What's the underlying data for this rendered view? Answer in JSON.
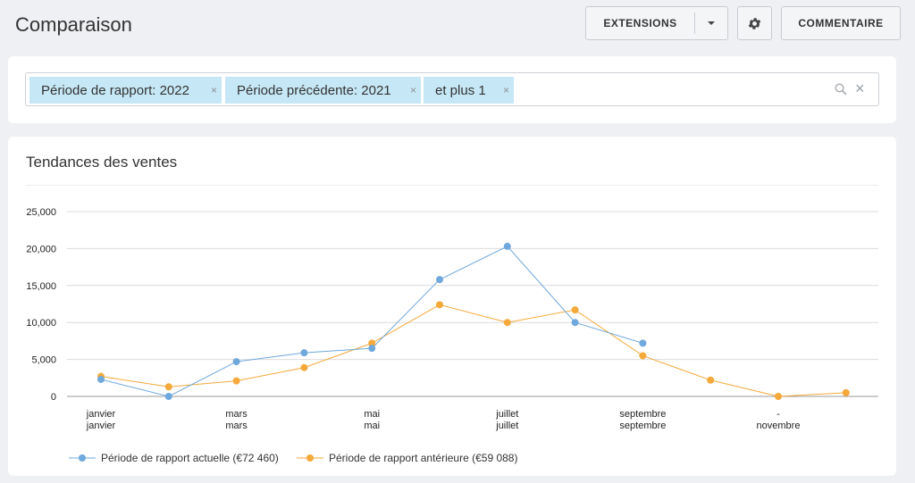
{
  "header": {
    "title": "Comparaison",
    "extensions_label": "EXTENSIONS",
    "comment_label": "COMMENTAIRE"
  },
  "filters": {
    "chips": [
      "Période de rapport: 2022",
      "Période précédente: 2021",
      "et plus 1"
    ],
    "remove_glyph": "×",
    "clear_glyph": "×"
  },
  "colors": {
    "current": "#6fa8dc",
    "previous": "#f4a93a"
  },
  "chart_data": {
    "type": "line",
    "title": "Tendances des ventes",
    "ylim": [
      0,
      25000
    ],
    "yticks": [
      "0",
      "5,000",
      "10,000",
      "15,000",
      "20,000",
      "25,000"
    ],
    "yticks_values": [
      0,
      5000,
      10000,
      15000,
      20000,
      25000
    ],
    "x_count": 12,
    "xticks": [
      {
        "index": 0,
        "line1": "janvier",
        "line2": "janvier"
      },
      {
        "index": 2,
        "line1": "mars",
        "line2": "mars"
      },
      {
        "index": 4,
        "line1": "mai",
        "line2": "mai"
      },
      {
        "index": 6,
        "line1": "juillet",
        "line2": "juillet"
      },
      {
        "index": 8,
        "line1": "septembre",
        "line2": "septembre"
      },
      {
        "index": 10,
        "line1": "-",
        "line2": "novembre"
      }
    ],
    "series": [
      {
        "name": "Période de rapport actuelle (€72 460)",
        "key": "current",
        "values": [
          2300,
          0,
          4700,
          5900,
          6500,
          15800,
          20300,
          10000,
          7200
        ]
      },
      {
        "name": "Période de rapport antérieure (€59 088)",
        "key": "previous",
        "values": [
          2700,
          1300,
          2100,
          3900,
          7200,
          12400,
          10000,
          11700,
          5500,
          2200,
          0,
          500
        ]
      }
    ],
    "grid": true,
    "legend": "bottom-left"
  }
}
